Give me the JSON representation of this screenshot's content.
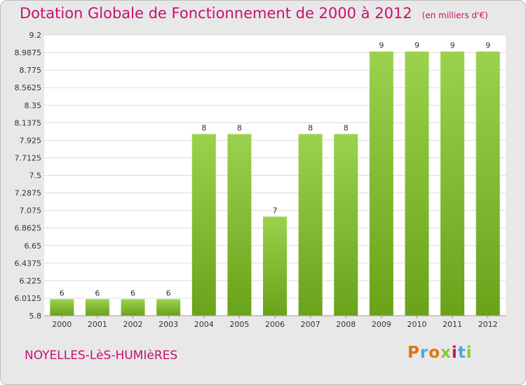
{
  "header": {
    "title": "Dotation Globale de Fonctionnement de 2000 à 2012",
    "unit": "(en milliers d'€)"
  },
  "footer": {
    "commune": "NOYELLES-LèS-HUMIèRES",
    "logo_text": "Proxiti",
    "logo_colors": [
      "#e5720f",
      "#4fa6d8",
      "#e5720f",
      "#8cc43a",
      "#c8106e",
      "#4fa6d8",
      "#8cc43a"
    ]
  },
  "chart_data": {
    "type": "bar",
    "title": "Dotation Globale de Fonctionnement de 2000 à 2012",
    "subtitle": "(en milliers d'€)",
    "xlabel": "",
    "ylabel": "",
    "categories": [
      "2000",
      "2001",
      "2002",
      "2003",
      "2004",
      "2005",
      "2006",
      "2007",
      "2008",
      "2009",
      "2010",
      "2011",
      "2012"
    ],
    "values": [
      6,
      6,
      6,
      6,
      8,
      8,
      7,
      8,
      8,
      9,
      9,
      9,
      9
    ],
    "data_labels": [
      "6",
      "6",
      "6",
      "6",
      "8",
      "8",
      "7",
      "8",
      "8",
      "9",
      "9",
      "9",
      "9"
    ],
    "ylim": [
      5.8,
      9.2
    ],
    "yticks": [
      "5.8",
      "6.0125",
      "6.225",
      "6.4375",
      "6.65",
      "6.8625",
      "7.075",
      "7.2875",
      "7.5",
      "7.7125",
      "7.925",
      "8.1375",
      "8.35",
      "8.5625",
      "8.775",
      "8.9875",
      "9.2"
    ],
    "grid": true,
    "legend": "none",
    "bar_color_top": "#9bd24d",
    "bar_color_bottom": "#6aa21a"
  }
}
